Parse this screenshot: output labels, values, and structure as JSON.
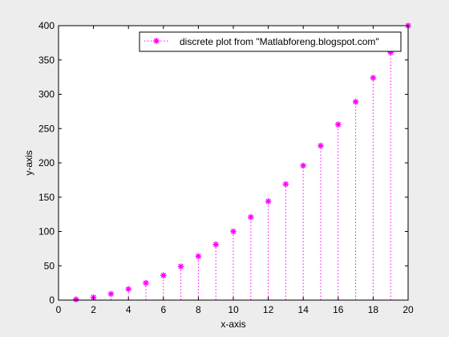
{
  "chart_data": {
    "type": "stem",
    "x": [
      1,
      2,
      3,
      4,
      5,
      6,
      7,
      8,
      9,
      10,
      11,
      12,
      13,
      14,
      15,
      16,
      17,
      18,
      19,
      20
    ],
    "series": [
      {
        "name": "discrete plot from \"Matlabforeng.blogspot.com\"",
        "values": [
          1,
          4,
          9,
          16,
          25,
          36,
          49,
          64,
          81,
          100,
          121,
          144,
          169,
          196,
          225,
          256,
          289,
          324,
          361,
          400
        ],
        "color": "#ff00ff",
        "marker": "asterisk",
        "line_style": "dotted"
      }
    ],
    "xlabel": "x-axis",
    "ylabel": "y-axis",
    "xlim": [
      0,
      20
    ],
    "ylim": [
      0,
      400
    ],
    "xticks": [
      "0",
      "2",
      "4",
      "6",
      "8",
      "10",
      "12",
      "14",
      "16",
      "18",
      "20"
    ],
    "yticks": [
      "0",
      "50",
      "100",
      "150",
      "200",
      "250",
      "300",
      "350",
      "400"
    ],
    "grid": false,
    "legend_position": "top-right",
    "background_color": "#ededed",
    "axes_color": "#ffffff"
  }
}
